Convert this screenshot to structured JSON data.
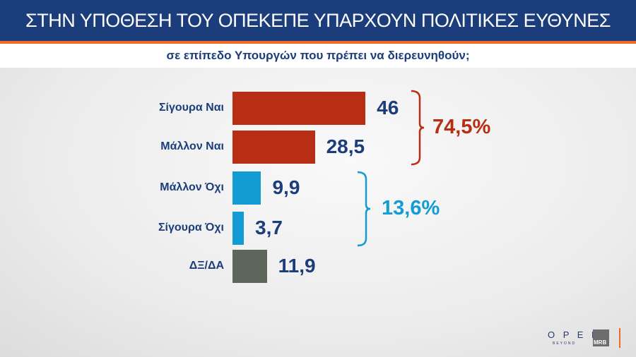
{
  "header": {
    "title": "ΣΤΗΝ ΥΠΟΘΕΣΗ ΤΟΥ ΟΠΕΚΕΠΕ ΥΠΑΡΧΟΥΝ ΠΟΛΙΤΙΚΕΣ ΕΥΘΥΝΕΣ",
    "subtitle": "σε επίπεδο Υπουργών που πρέπει να διερευνηθούν;"
  },
  "chart_data": {
    "type": "bar",
    "orientation": "horizontal",
    "categories": [
      "Σίγουρα Ναι",
      "Μάλλον Ναι",
      "Μάλλον Όχι",
      "Σίγουρα Όχι",
      "ΔΞ/ΔΑ"
    ],
    "values": [
      46,
      28.5,
      9.9,
      3.7,
      11.9
    ],
    "value_labels": [
      "46",
      "28,5",
      "9,9",
      "3,7",
      "11,9"
    ],
    "colors": [
      "#b82e14",
      "#b82e14",
      "#139bd3",
      "#139bd3",
      "#5e665b"
    ],
    "groups": [
      {
        "label": "74,5%",
        "color": "#b82e14",
        "members": [
          0,
          1
        ]
      },
      {
        "label": "13,6%",
        "color": "#139bd3",
        "members": [
          2,
          3
        ]
      }
    ]
  },
  "logos": {
    "open": "OPEN",
    "open_sub": "BEYOND",
    "mrb": "MRB"
  }
}
